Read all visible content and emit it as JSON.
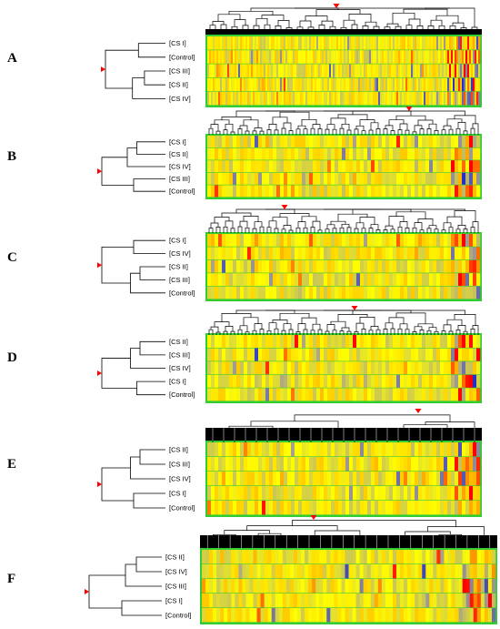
{
  "panels": [
    {
      "letter": "A",
      "rows": [
        "[CS I]",
        "[Control]",
        "[CS III]",
        "[CS II]",
        "[CS IV]"
      ]
    },
    {
      "letter": "B",
      "rows": [
        "[CS I]",
        "[CS II]",
        "[CS IV]",
        "[CS III]",
        "[Control]"
      ]
    },
    {
      "letter": "C",
      "rows": [
        "[CS I]",
        "[CS IV]",
        "[CS II]",
        "[CS III]",
        "[Control]"
      ]
    },
    {
      "letter": "D",
      "rows": [
        "[CS II]",
        "[CS III]",
        "[CS IV]",
        "[CS I]",
        "[Control]"
      ]
    },
    {
      "letter": "E",
      "rows": [
        "[CS II]",
        "[CS III]",
        "[CS IV]",
        "[CS I]",
        "[Control]"
      ]
    },
    {
      "letter": "F",
      "rows": [
        "[CS II]",
        "[CS IV]",
        "[CS III]",
        "[CS I]",
        "[Control]"
      ]
    }
  ],
  "colors": {
    "low": "#2030c8",
    "neutral": "#a8a08c",
    "mid": "#ffff00",
    "high": "#ff0000",
    "frame": "#33cc33",
    "marker": "#ff0000"
  }
}
